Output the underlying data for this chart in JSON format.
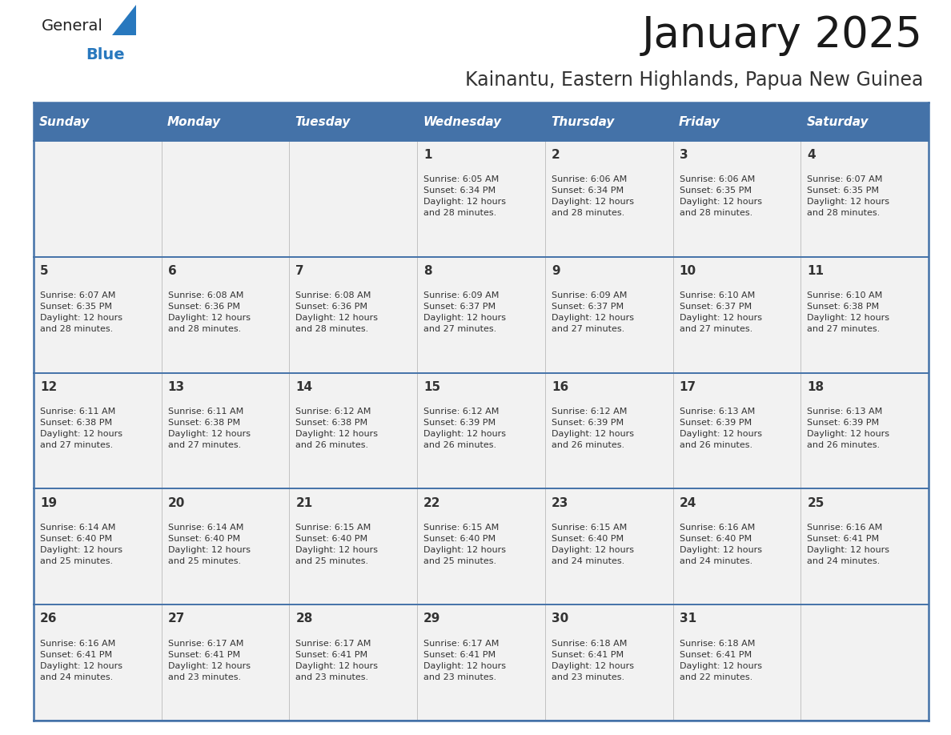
{
  "title": "January 2025",
  "subtitle": "Kainantu, Eastern Highlands, Papua New Guinea",
  "header_bg": "#4472a8",
  "header_text": "#ffffff",
  "cell_bg": "#f2f2f2",
  "border_color": "#4472a8",
  "text_color": "#333333",
  "day_headers": [
    "Sunday",
    "Monday",
    "Tuesday",
    "Wednesday",
    "Thursday",
    "Friday",
    "Saturday"
  ],
  "calendar": [
    [
      "",
      "",
      "",
      "1\nSunrise: 6:05 AM\nSunset: 6:34 PM\nDaylight: 12 hours\nand 28 minutes.",
      "2\nSunrise: 6:06 AM\nSunset: 6:34 PM\nDaylight: 12 hours\nand 28 minutes.",
      "3\nSunrise: 6:06 AM\nSunset: 6:35 PM\nDaylight: 12 hours\nand 28 minutes.",
      "4\nSunrise: 6:07 AM\nSunset: 6:35 PM\nDaylight: 12 hours\nand 28 minutes."
    ],
    [
      "5\nSunrise: 6:07 AM\nSunset: 6:35 PM\nDaylight: 12 hours\nand 28 minutes.",
      "6\nSunrise: 6:08 AM\nSunset: 6:36 PM\nDaylight: 12 hours\nand 28 minutes.",
      "7\nSunrise: 6:08 AM\nSunset: 6:36 PM\nDaylight: 12 hours\nand 28 minutes.",
      "8\nSunrise: 6:09 AM\nSunset: 6:37 PM\nDaylight: 12 hours\nand 27 minutes.",
      "9\nSunrise: 6:09 AM\nSunset: 6:37 PM\nDaylight: 12 hours\nand 27 minutes.",
      "10\nSunrise: 6:10 AM\nSunset: 6:37 PM\nDaylight: 12 hours\nand 27 minutes.",
      "11\nSunrise: 6:10 AM\nSunset: 6:38 PM\nDaylight: 12 hours\nand 27 minutes."
    ],
    [
      "12\nSunrise: 6:11 AM\nSunset: 6:38 PM\nDaylight: 12 hours\nand 27 minutes.",
      "13\nSunrise: 6:11 AM\nSunset: 6:38 PM\nDaylight: 12 hours\nand 27 minutes.",
      "14\nSunrise: 6:12 AM\nSunset: 6:38 PM\nDaylight: 12 hours\nand 26 minutes.",
      "15\nSunrise: 6:12 AM\nSunset: 6:39 PM\nDaylight: 12 hours\nand 26 minutes.",
      "16\nSunrise: 6:12 AM\nSunset: 6:39 PM\nDaylight: 12 hours\nand 26 minutes.",
      "17\nSunrise: 6:13 AM\nSunset: 6:39 PM\nDaylight: 12 hours\nand 26 minutes.",
      "18\nSunrise: 6:13 AM\nSunset: 6:39 PM\nDaylight: 12 hours\nand 26 minutes."
    ],
    [
      "19\nSunrise: 6:14 AM\nSunset: 6:40 PM\nDaylight: 12 hours\nand 25 minutes.",
      "20\nSunrise: 6:14 AM\nSunset: 6:40 PM\nDaylight: 12 hours\nand 25 minutes.",
      "21\nSunrise: 6:15 AM\nSunset: 6:40 PM\nDaylight: 12 hours\nand 25 minutes.",
      "22\nSunrise: 6:15 AM\nSunset: 6:40 PM\nDaylight: 12 hours\nand 25 minutes.",
      "23\nSunrise: 6:15 AM\nSunset: 6:40 PM\nDaylight: 12 hours\nand 24 minutes.",
      "24\nSunrise: 6:16 AM\nSunset: 6:40 PM\nDaylight: 12 hours\nand 24 minutes.",
      "25\nSunrise: 6:16 AM\nSunset: 6:41 PM\nDaylight: 12 hours\nand 24 minutes."
    ],
    [
      "26\nSunrise: 6:16 AM\nSunset: 6:41 PM\nDaylight: 12 hours\nand 24 minutes.",
      "27\nSunrise: 6:17 AM\nSunset: 6:41 PM\nDaylight: 12 hours\nand 23 minutes.",
      "28\nSunrise: 6:17 AM\nSunset: 6:41 PM\nDaylight: 12 hours\nand 23 minutes.",
      "29\nSunrise: 6:17 AM\nSunset: 6:41 PM\nDaylight: 12 hours\nand 23 minutes.",
      "30\nSunrise: 6:18 AM\nSunset: 6:41 PM\nDaylight: 12 hours\nand 23 minutes.",
      "31\nSunrise: 6:18 AM\nSunset: 6:41 PM\nDaylight: 12 hours\nand 22 minutes.",
      ""
    ]
  ],
  "logo_general_color": "#222222",
  "logo_blue_color": "#2878be",
  "logo_triangle_color": "#2878be",
  "title_fontsize": 38,
  "subtitle_fontsize": 17
}
